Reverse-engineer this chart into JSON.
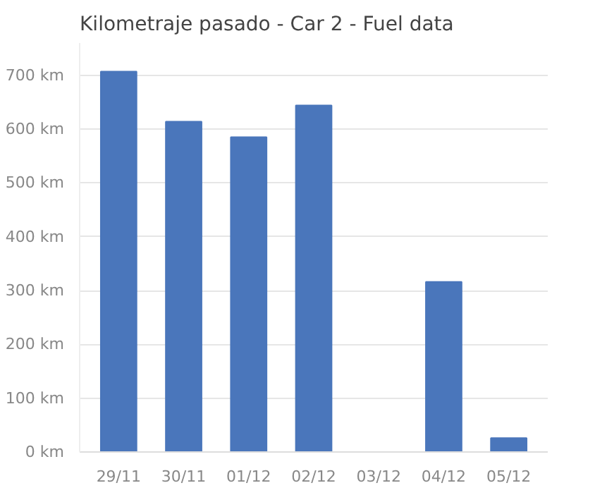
{
  "chart_data": {
    "type": "bar",
    "title": "Kilometraje pasado - Car 2 - Fuel data",
    "categories": [
      "29/11",
      "30/11",
      "01/12",
      "02/12",
      "03/12",
      "04/12",
      "05/12"
    ],
    "values": [
      707,
      614,
      585,
      644,
      0,
      316,
      26
    ],
    "color": "#4a76bb",
    "ylim": [
      0,
      760
    ],
    "yticks": [
      {
        "value": 0,
        "label": "0 km"
      },
      {
        "value": 100,
        "label": "100 km"
      },
      {
        "value": 200,
        "label": "200 km"
      },
      {
        "value": 300,
        "label": "300 km"
      },
      {
        "value": 400,
        "label": "400 km"
      },
      {
        "value": 500,
        "label": "500 km"
      },
      {
        "value": 600,
        "label": "600 km"
      },
      {
        "value": 700,
        "label": "700 km"
      }
    ],
    "grid": "y"
  }
}
